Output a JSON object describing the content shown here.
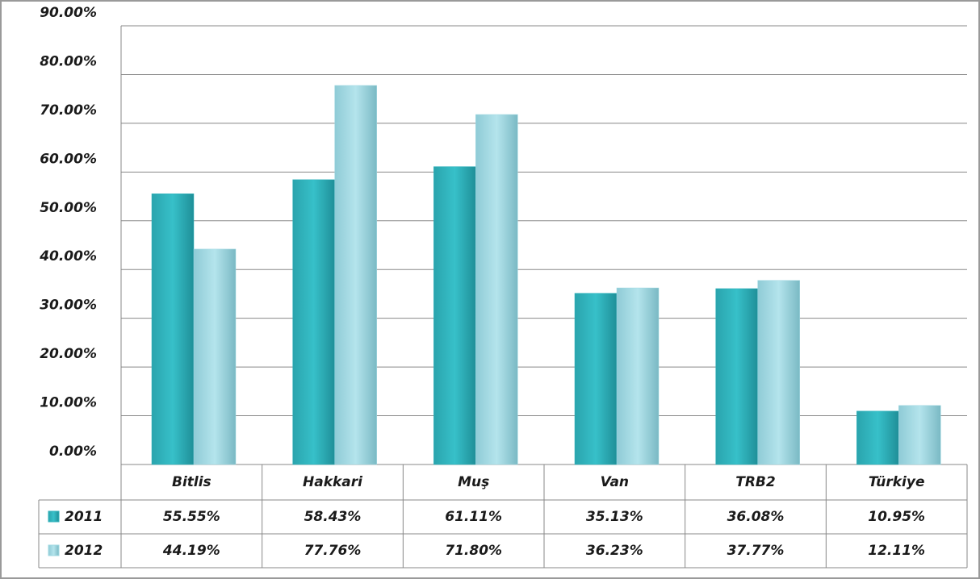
{
  "chart_data": {
    "type": "bar",
    "categories": [
      "Bitlis",
      "Hakkari",
      "Muş",
      "Van",
      "TRB2",
      "Türkiye"
    ],
    "series": [
      {
        "name": "2011",
        "color": "#2fb2bb",
        "values": [
          55.55,
          58.43,
          61.11,
          35.13,
          36.08,
          10.95
        ],
        "value_labels": [
          "55.55%",
          "58.43%",
          "61.11%",
          "35.13%",
          "36.08%",
          "10.95%"
        ]
      },
      {
        "name": "2012",
        "color": "#9fd8e2",
        "values": [
          44.19,
          77.76,
          71.8,
          36.23,
          37.77,
          12.11
        ],
        "value_labels": [
          "44.19%",
          "77.76%",
          "71.80%",
          "36.23%",
          "37.77%",
          "12.11%"
        ]
      }
    ],
    "ylim": [
      0,
      90
    ],
    "yticks": [
      {
        "value": 0,
        "label": "0.00%"
      },
      {
        "value": 10,
        "label": "10.00%"
      },
      {
        "value": 20,
        "label": "20.00%"
      },
      {
        "value": 30,
        "label": "30.00%"
      },
      {
        "value": 40,
        "label": "40.00%"
      },
      {
        "value": 50,
        "label": "50.00%"
      },
      {
        "value": 60,
        "label": "60.00%"
      },
      {
        "value": 70,
        "label": "70.00%"
      },
      {
        "value": 80,
        "label": "80.00%"
      },
      {
        "value": 90,
        "label": "90.00%"
      }
    ],
    "grid": true,
    "legend": "table"
  }
}
